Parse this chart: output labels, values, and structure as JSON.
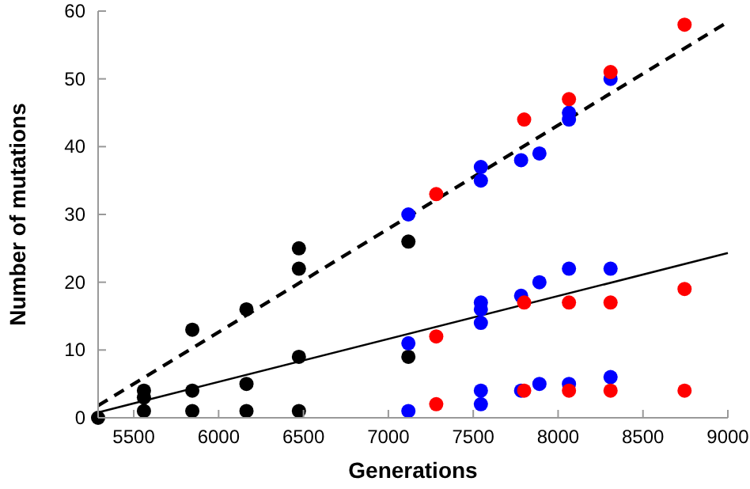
{
  "chart_data": {
    "type": "scatter",
    "xlabel": "Generations",
    "ylabel": "Number of mutations",
    "xlim": [
      5290,
      9000
    ],
    "ylim": [
      0,
      60
    ],
    "xticks": [
      5500,
      6000,
      6500,
      7000,
      7500,
      8000,
      8500,
      9000
    ],
    "yticks": [
      0,
      10,
      20,
      30,
      40,
      50,
      60
    ],
    "grid": false,
    "series": [
      {
        "marker": "circle",
        "color": "#000000",
        "x": [
          5290,
          5560,
          5560,
          5560,
          5845,
          5845,
          5845,
          6164,
          6164,
          6164,
          6473,
          6473,
          6473,
          6473,
          7118,
          7118
        ],
        "values": [
          0,
          4,
          3,
          1,
          13,
          4,
          1,
          16,
          5,
          1,
          25,
          22,
          9,
          1,
          26,
          9
        ]
      },
      {
        "marker": "circle",
        "color": "#0000ff",
        "x": [
          7118,
          7118,
          7118,
          7545,
          7545,
          7545,
          7545,
          7545,
          7545,
          7545,
          7782,
          7782,
          7782,
          7890,
          7890,
          7890,
          8064,
          8064,
          8064,
          8064,
          8309,
          8309,
          8309
        ],
        "values": [
          30,
          11,
          1,
          37,
          35,
          17,
          16,
          14,
          4,
          2,
          38,
          18,
          4,
          39,
          20,
          5,
          45,
          44,
          22,
          5,
          50,
          22,
          6
        ]
      },
      {
        "marker": "circle",
        "color": "#ff0000",
        "x": [
          7282,
          7282,
          7282,
          7800,
          7800,
          7800,
          8064,
          8064,
          8064,
          8309,
          8309,
          8309,
          8745,
          8745,
          8745
        ],
        "values": [
          33,
          12,
          2,
          44,
          17,
          4,
          47,
          17,
          4,
          51,
          17,
          4,
          58,
          19,
          4
        ]
      },
      {
        "type": "line",
        "marker": "none",
        "line_style": "dashed",
        "color": "#000000",
        "x": [
          5290,
          9000
        ],
        "values": [
          1.8,
          58.4
        ]
      },
      {
        "type": "line",
        "marker": "none",
        "line_style": "solid",
        "color": "#000000",
        "x": [
          5290,
          9000
        ],
        "values": [
          0.8,
          24.3
        ]
      }
    ]
  }
}
